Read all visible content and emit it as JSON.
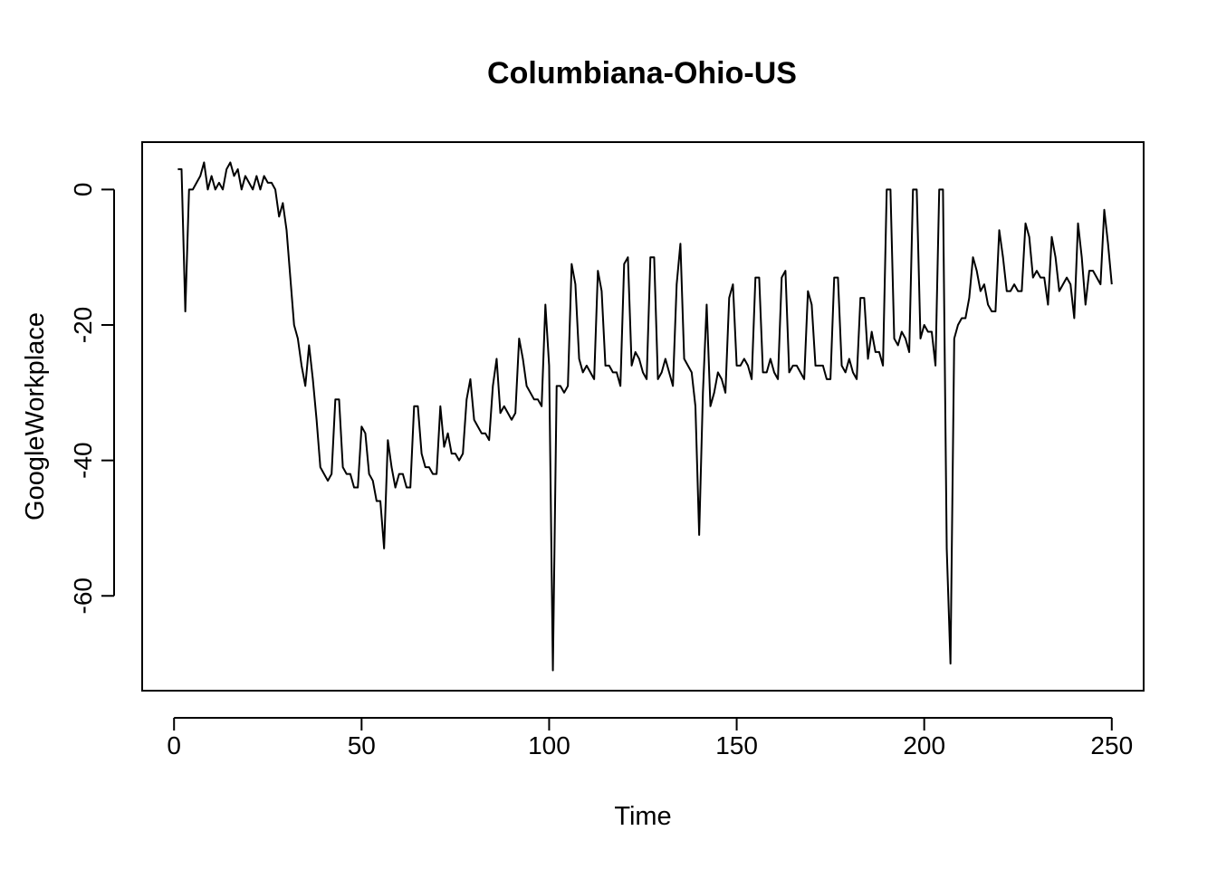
{
  "chart_data": {
    "type": "line",
    "title": "Columbiana-Ohio-US",
    "xlabel": "Time",
    "ylabel": "GoogleWorkplace",
    "xlim": [
      -8.5,
      258.5
    ],
    "ylim": [
      -74,
      7
    ],
    "xticks": [
      0,
      50,
      100,
      150,
      200,
      250
    ],
    "yticks": [
      0,
      -20,
      -40,
      -60
    ],
    "xtick_labels": [
      "0",
      "50",
      "100",
      "150",
      "200",
      "250"
    ],
    "ytick_labels": [
      "0",
      "-20",
      "-40",
      "-60"
    ],
    "grid": false,
    "line_color": "#000000",
    "series": [
      {
        "x_start": 1,
        "values": [
          3,
          3,
          -18,
          0,
          0,
          1,
          2,
          4,
          0,
          2,
          0,
          1,
          0,
          3,
          4,
          2,
          3,
          0,
          2,
          1,
          0,
          2,
          0,
          2,
          1,
          1,
          0,
          -4,
          -2,
          -6,
          -13,
          -20,
          -22,
          -26,
          -29,
          -23,
          -28,
          -34,
          -41,
          -42,
          -43,
          -42,
          -31,
          -31,
          -41,
          -42,
          -42,
          -44,
          -44,
          -35,
          -36,
          -42,
          -43,
          -46,
          -46,
          -53,
          -37,
          -41,
          -44,
          -42,
          -42,
          -44,
          -44,
          -32,
          -32,
          -39,
          -41,
          -41,
          -42,
          -42,
          -32,
          -38,
          -36,
          -39,
          -39,
          -40,
          -39,
          -31,
          -28,
          -34,
          -35,
          -36,
          -36,
          -37,
          -29,
          -25,
          -33,
          -32,
          -33,
          -34,
          -33,
          -22,
          -25,
          -29,
          -30,
          -31,
          -31,
          -32,
          -17,
          -26,
          -71,
          -29,
          -29,
          -30,
          -29,
          -11,
          -14,
          -25,
          -27,
          -26,
          -27,
          -28,
          -12,
          -15,
          -26,
          -26,
          -27,
          -27,
          -29,
          -11,
          -10,
          -26,
          -24,
          -25,
          -27,
          -28,
          -10,
          -10,
          -28,
          -27,
          -25,
          -27,
          -29,
          -14,
          -8,
          -25,
          -26,
          -27,
          -32,
          -51,
          -30,
          -17,
          -32,
          -30,
          -27,
          -28,
          -30,
          -16,
          -14,
          -26,
          -26,
          -25,
          -26,
          -28,
          -13,
          -13,
          -27,
          -27,
          -25,
          -27,
          -28,
          -13,
          -12,
          -27,
          -26,
          -26,
          -27,
          -28,
          -15,
          -17,
          -26,
          -26,
          -26,
          -28,
          -28,
          -13,
          -13,
          -26,
          -27,
          -25,
          -27,
          -28,
          -16,
          -16,
          -25,
          -21,
          -24,
          -24,
          -26,
          0,
          0,
          -22,
          -23,
          -21,
          -22,
          -24,
          0,
          0,
          -22,
          -20,
          -21,
          -21,
          -26,
          0,
          0,
          -53,
          -70,
          -22,
          -20,
          -19,
          -19,
          -16,
          -10,
          -12,
          -15,
          -14,
          -17,
          -18,
          -18,
          -6,
          -10,
          -15,
          -15,
          -14,
          -15,
          -15,
          -5,
          -7,
          -13,
          -12,
          -13,
          -13,
          -17,
          -7,
          -10,
          -15,
          -14,
          -13,
          -14,
          -19,
          -5,
          -10,
          -17,
          -12,
          -12,
          -13,
          -14,
          -3,
          -8,
          -14
        ]
      }
    ]
  }
}
